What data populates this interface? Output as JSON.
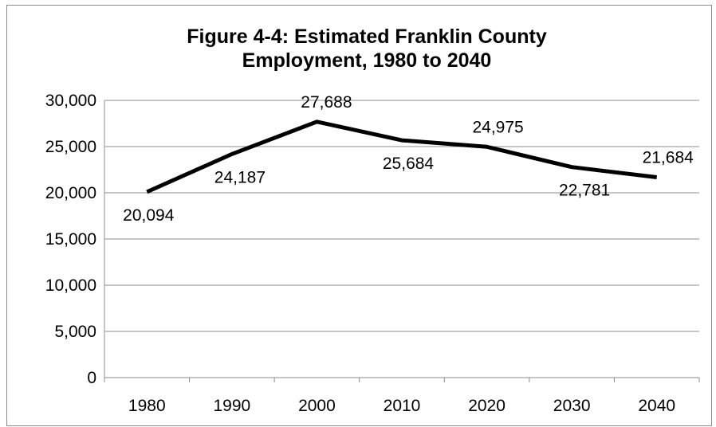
{
  "chart_data": {
    "type": "line",
    "title_lines": [
      "Figure 4-4: Estimated Franklin County",
      "Employment, 1980 to 2040"
    ],
    "xlabel": "",
    "ylabel": "",
    "categories": [
      "1980",
      "1990",
      "2000",
      "2010",
      "2020",
      "2030",
      "2040"
    ],
    "series": [
      {
        "values": [
          20094,
          24187,
          27688,
          25684,
          24975,
          22781,
          21684
        ],
        "labels": [
          "20,094",
          "24,187",
          "27,688",
          "25,684",
          "24,975",
          "22,781",
          "21,684"
        ],
        "label_positions": [
          "below",
          "below",
          "above",
          "below",
          "above",
          "below",
          "above"
        ],
        "color": "#000000"
      }
    ],
    "ylim": [
      0,
      30000
    ],
    "yticks": [
      0,
      5000,
      10000,
      15000,
      20000,
      25000,
      30000
    ],
    "ytick_labels": [
      "0",
      "5,000",
      "10,000",
      "15,000",
      "20,000",
      "25,000",
      "30,000"
    ],
    "grid": true,
    "gridline_color": "#8c8c8c",
    "legend": "none"
  }
}
